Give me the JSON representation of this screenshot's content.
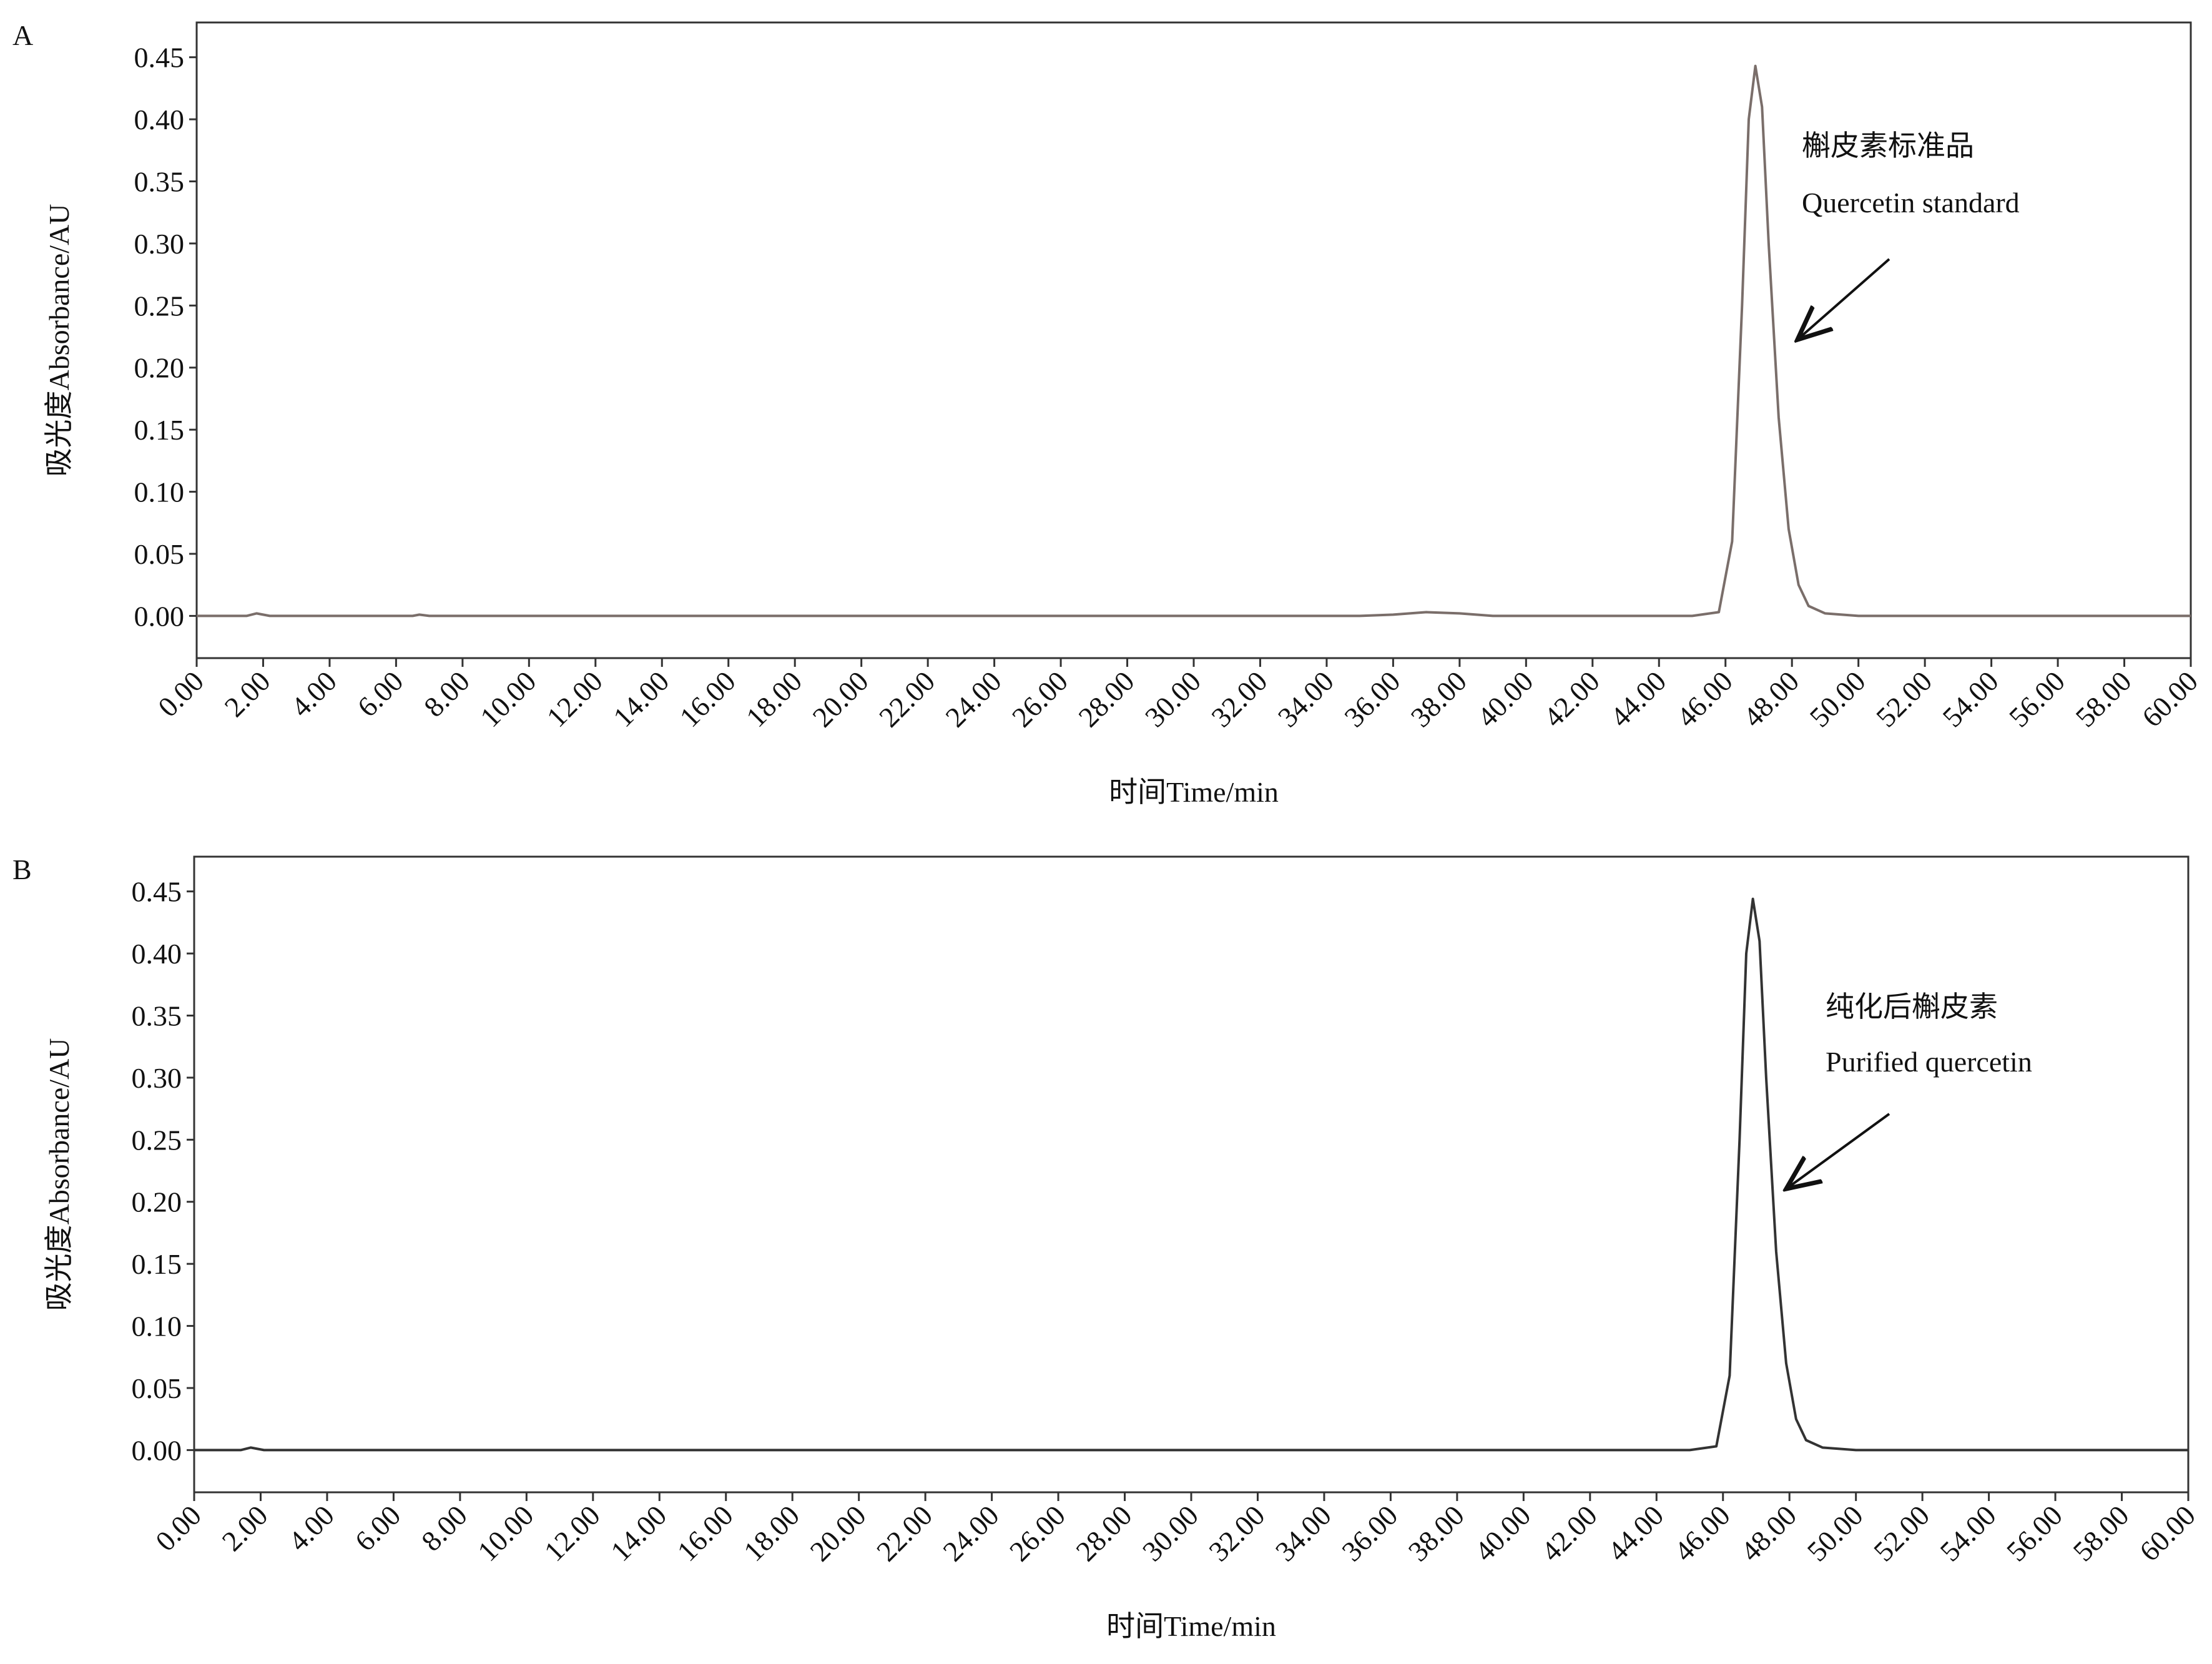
{
  "chart_data": [
    {
      "type": "line",
      "label": "A",
      "ylabel": "吸光度Absorbance/AU",
      "xlabel": "时间Time/min",
      "color": "#7a6e6a",
      "annotations": [
        "槲皮素标准品",
        "Quercetin standard"
      ],
      "x": [
        0,
        1.5,
        1.8,
        2.2,
        6.5,
        6.7,
        7,
        20,
        35,
        36,
        37,
        38,
        39,
        45,
        45.8,
        46.2,
        46.5,
        46.7,
        46.9,
        47.1,
        47.3,
        47.6,
        47.9,
        48.2,
        48.5,
        49,
        50,
        60
      ],
      "values": [
        0,
        0,
        0.002,
        0,
        0,
        0.001,
        0,
        0,
        0,
        0.001,
        0.003,
        0.002,
        0,
        0,
        0.003,
        0.06,
        0.25,
        0.4,
        0.443,
        0.41,
        0.3,
        0.16,
        0.07,
        0.025,
        0.008,
        0.002,
        0,
        0
      ],
      "xlim": [
        0,
        60
      ],
      "ylim": [
        -0.034,
        0.478
      ],
      "xticks": [
        {
          "value": 0,
          "label": "0.00"
        },
        {
          "value": 2,
          "label": "2.00"
        },
        {
          "value": 4,
          "label": "4.00"
        },
        {
          "value": 6,
          "label": "6.00"
        },
        {
          "value": 8,
          "label": "8.00"
        },
        {
          "value": 10,
          "label": "10.00"
        },
        {
          "value": 12,
          "label": "12.00"
        },
        {
          "value": 14,
          "label": "14.00"
        },
        {
          "value": 16,
          "label": "16.00"
        },
        {
          "value": 18,
          "label": "18.00"
        },
        {
          "value": 20,
          "label": "20.00"
        },
        {
          "value": 22,
          "label": "22.00"
        },
        {
          "value": 24,
          "label": "24.00"
        },
        {
          "value": 26,
          "label": "26.00"
        },
        {
          "value": 28,
          "label": "28.00"
        },
        {
          "value": 30,
          "label": "30.00"
        },
        {
          "value": 32,
          "label": "32.00"
        },
        {
          "value": 34,
          "label": "34.00"
        },
        {
          "value": 36,
          "label": "36.00"
        },
        {
          "value": 38,
          "label": "38.00"
        },
        {
          "value": 40,
          "label": "40.00"
        },
        {
          "value": 42,
          "label": "42.00"
        },
        {
          "value": 44,
          "label": "44.00"
        },
        {
          "value": 46,
          "label": "46.00"
        },
        {
          "value": 48,
          "label": "48.00"
        },
        {
          "value": 50,
          "label": "50.00"
        },
        {
          "value": 52,
          "label": "52.00"
        },
        {
          "value": 54,
          "label": "54.00"
        },
        {
          "value": 56,
          "label": "56.00"
        },
        {
          "value": 58,
          "label": "58.00"
        },
        {
          "value": 60,
          "label": "60.00"
        }
      ],
      "yticks": [
        {
          "value": 0,
          "label": "0.00"
        },
        {
          "value": 0.05,
          "label": "0.05"
        },
        {
          "value": 0.1,
          "label": "0.10"
        },
        {
          "value": 0.15,
          "label": "0.15"
        },
        {
          "value": 0.2,
          "label": "0.20"
        },
        {
          "value": 0.25,
          "label": "0.25"
        },
        {
          "value": 0.3,
          "label": "0.30"
        },
        {
          "value": 0.35,
          "label": "0.35"
        },
        {
          "value": 0.4,
          "label": "0.40"
        },
        {
          "value": 0.45,
          "label": "0.45"
        }
      ]
    },
    {
      "type": "line",
      "label": "B",
      "ylabel": "吸光度Absorbance/AU",
      "xlabel": "时间Time/min",
      "color": "#333333",
      "annotations": [
        "纯化后槲皮素",
        "Purified quercetin"
      ],
      "x": [
        0,
        1.4,
        1.7,
        2.1,
        20,
        40,
        45,
        45.8,
        46.2,
        46.5,
        46.7,
        46.9,
        47.1,
        47.3,
        47.6,
        47.9,
        48.2,
        48.5,
        49,
        50,
        60
      ],
      "values": [
        0,
        0,
        0.002,
        0,
        0,
        0,
        0,
        0.003,
        0.06,
        0.25,
        0.4,
        0.444,
        0.41,
        0.3,
        0.16,
        0.07,
        0.025,
        0.008,
        0.002,
        0,
        0
      ],
      "xlim": [
        0,
        60
      ],
      "ylim": [
        -0.034,
        0.478
      ],
      "xticks": [
        {
          "value": 0,
          "label": "0.00"
        },
        {
          "value": 2,
          "label": "2.00"
        },
        {
          "value": 4,
          "label": "4.00"
        },
        {
          "value": 6,
          "label": "6.00"
        },
        {
          "value": 8,
          "label": "8.00"
        },
        {
          "value": 10,
          "label": "10.00"
        },
        {
          "value": 12,
          "label": "12.00"
        },
        {
          "value": 14,
          "label": "14.00"
        },
        {
          "value": 16,
          "label": "16.00"
        },
        {
          "value": 18,
          "label": "18.00"
        },
        {
          "value": 20,
          "label": "20.00"
        },
        {
          "value": 22,
          "label": "22.00"
        },
        {
          "value": 24,
          "label": "24.00"
        },
        {
          "value": 26,
          "label": "26.00"
        },
        {
          "value": 28,
          "label": "28.00"
        },
        {
          "value": 30,
          "label": "30.00"
        },
        {
          "value": 32,
          "label": "32.00"
        },
        {
          "value": 34,
          "label": "34.00"
        },
        {
          "value": 36,
          "label": "36.00"
        },
        {
          "value": 38,
          "label": "38.00"
        },
        {
          "value": 40,
          "label": "40.00"
        },
        {
          "value": 42,
          "label": "42.00"
        },
        {
          "value": 44,
          "label": "44.00"
        },
        {
          "value": 46,
          "label": "46.00"
        },
        {
          "value": 48,
          "label": "48.00"
        },
        {
          "value": 50,
          "label": "50.00"
        },
        {
          "value": 52,
          "label": "52.00"
        },
        {
          "value": 54,
          "label": "54.00"
        },
        {
          "value": 56,
          "label": "56.00"
        },
        {
          "value": 58,
          "label": "58.00"
        },
        {
          "value": 60,
          "label": "60.00"
        }
      ],
      "yticks": [
        {
          "value": 0,
          "label": "0.00"
        },
        {
          "value": 0.05,
          "label": "0.05"
        },
        {
          "value": 0.1,
          "label": "0.10"
        },
        {
          "value": 0.15,
          "label": "0.15"
        },
        {
          "value": 0.2,
          "label": "0.20"
        },
        {
          "value": 0.25,
          "label": "0.25"
        },
        {
          "value": 0.3,
          "label": "0.30"
        },
        {
          "value": 0.35,
          "label": "0.35"
        },
        {
          "value": 0.4,
          "label": "0.40"
        },
        {
          "value": 0.45,
          "label": "0.45"
        }
      ]
    }
  ]
}
